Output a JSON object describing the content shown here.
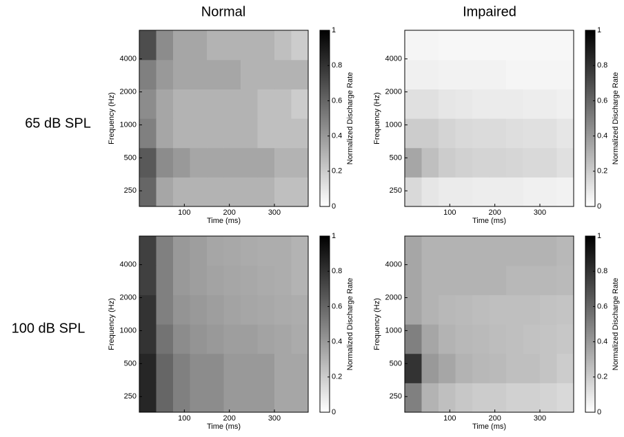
{
  "column_titles": [
    "Normal",
    "Impaired"
  ],
  "row_labels": [
    "65 dB SPL",
    "100 dB SPL"
  ],
  "chart_data": [
    {
      "type": "heatmap",
      "xlabel": "Time (ms)",
      "ylabel": "Frequency (Hz)",
      "colorbar_label": "Normalized Discharge Rate",
      "x": [
        18.75,
        56.25,
        93.75,
        131.25,
        168.75,
        206.25,
        243.75,
        281.25,
        318.75,
        356.25
      ],
      "y": [
        245,
        454,
        841,
        1558,
        2888,
        5351
      ],
      "values": [
        [
          0.6,
          0.35,
          0.3,
          0.3,
          0.3,
          0.3,
          0.3,
          0.3,
          0.25,
          0.25
        ],
        [
          0.65,
          0.45,
          0.4,
          0.35,
          0.35,
          0.35,
          0.35,
          0.35,
          0.3,
          0.3
        ],
        [
          0.5,
          0.35,
          0.3,
          0.3,
          0.3,
          0.3,
          0.3,
          0.25,
          0.25,
          0.25
        ],
        [
          0.45,
          0.35,
          0.3,
          0.3,
          0.3,
          0.3,
          0.3,
          0.25,
          0.25,
          0.2
        ],
        [
          0.5,
          0.4,
          0.35,
          0.35,
          0.35,
          0.35,
          0.3,
          0.3,
          0.3,
          0.3
        ],
        [
          0.7,
          0.45,
          0.35,
          0.35,
          0.3,
          0.3,
          0.3,
          0.3,
          0.25,
          0.2
        ]
      ],
      "xlim": [
        0,
        375
      ],
      "xticks": [
        100,
        200,
        300
      ],
      "ylim": [
        180,
        7300
      ],
      "yticks": [
        250,
        500,
        1000,
        2000,
        4000
      ],
      "log_y": true,
      "clim": [
        0,
        1
      ],
      "cticks": [
        0,
        0.2,
        0.4,
        0.6,
        0.8,
        1
      ],
      "colormap": [
        "#ffffff",
        "#000000"
      ]
    },
    {
      "type": "heatmap",
      "xlabel": "Time (ms)",
      "ylabel": "Frequency (Hz)",
      "colorbar_label": "Normalized Discharge Rate",
      "x": [
        18.75,
        56.25,
        93.75,
        131.25,
        168.75,
        206.25,
        243.75,
        281.25,
        318.75,
        356.25
      ],
      "y": [
        245,
        454,
        841,
        1558,
        2888,
        5351
      ],
      "values": [
        [
          0.15,
          0.1,
          0.08,
          0.08,
          0.07,
          0.07,
          0.07,
          0.06,
          0.06,
          0.05
        ],
        [
          0.35,
          0.25,
          0.2,
          0.18,
          0.17,
          0.17,
          0.16,
          0.15,
          0.15,
          0.12
        ],
        [
          0.2,
          0.2,
          0.17,
          0.15,
          0.14,
          0.14,
          0.13,
          0.12,
          0.12,
          0.1
        ],
        [
          0.12,
          0.12,
          0.1,
          0.09,
          0.08,
          0.08,
          0.08,
          0.07,
          0.07,
          0.06
        ],
        [
          0.06,
          0.06,
          0.05,
          0.05,
          0.05,
          0.05,
          0.04,
          0.04,
          0.04,
          0.04
        ],
        [
          0.04,
          0.04,
          0.03,
          0.03,
          0.03,
          0.03,
          0.03,
          0.03,
          0.03,
          0.03
        ]
      ],
      "xlim": [
        0,
        375
      ],
      "xticks": [
        100,
        200,
        300
      ],
      "ylim": [
        180,
        7300
      ],
      "yticks": [
        250,
        500,
        1000,
        2000,
        4000
      ],
      "log_y": true,
      "clim": [
        0,
        1
      ],
      "cticks": [
        0,
        0.2,
        0.4,
        0.6,
        0.8,
        1
      ],
      "colormap": [
        "#ffffff",
        "#000000"
      ]
    },
    {
      "type": "heatmap",
      "xlabel": "Time (ms)",
      "ylabel": "Frequency (Hz)",
      "colorbar_label": "Normalized Discharge Rate",
      "x": [
        18.75,
        56.25,
        93.75,
        131.25,
        168.75,
        206.25,
        243.75,
        281.25,
        318.75,
        356.25
      ],
      "y": [
        245,
        454,
        841,
        1558,
        2888,
        5351
      ],
      "values": [
        [
          0.85,
          0.6,
          0.5,
          0.45,
          0.45,
          0.4,
          0.4,
          0.4,
          0.35,
          0.35
        ],
        [
          0.85,
          0.6,
          0.5,
          0.45,
          0.45,
          0.4,
          0.4,
          0.4,
          0.35,
          0.35
        ],
        [
          0.8,
          0.55,
          0.45,
          0.42,
          0.4,
          0.38,
          0.38,
          0.36,
          0.35,
          0.33
        ],
        [
          0.8,
          0.5,
          0.42,
          0.4,
          0.38,
          0.36,
          0.35,
          0.34,
          0.33,
          0.32
        ],
        [
          0.75,
          0.5,
          0.4,
          0.38,
          0.36,
          0.35,
          0.34,
          0.33,
          0.32,
          0.3
        ],
        [
          0.75,
          0.5,
          0.4,
          0.38,
          0.35,
          0.34,
          0.33,
          0.32,
          0.32,
          0.3
        ]
      ],
      "xlim": [
        0,
        375
      ],
      "xticks": [
        100,
        200,
        300
      ],
      "ylim": [
        180,
        7300
      ],
      "yticks": [
        250,
        500,
        1000,
        2000,
        4000
      ],
      "log_y": true,
      "clim": [
        0,
        1
      ],
      "cticks": [
        0,
        0.2,
        0.4,
        0.6,
        0.8,
        1
      ],
      "colormap": [
        "#ffffff",
        "#000000"
      ]
    },
    {
      "type": "heatmap",
      "xlabel": "Time (ms)",
      "ylabel": "Frequency (Hz)",
      "colorbar_label": "Normalized Discharge Rate",
      "x": [
        18.75,
        56.25,
        93.75,
        131.25,
        168.75,
        206.25,
        243.75,
        281.25,
        318.75,
        356.25
      ],
      "y": [
        245,
        454,
        841,
        1558,
        2888,
        5351
      ],
      "values": [
        [
          0.5,
          0.3,
          0.25,
          0.22,
          0.2,
          0.2,
          0.18,
          0.18,
          0.17,
          0.15
        ],
        [
          0.8,
          0.4,
          0.35,
          0.3,
          0.28,
          0.27,
          0.25,
          0.25,
          0.23,
          0.2
        ],
        [
          0.5,
          0.35,
          0.3,
          0.28,
          0.27,
          0.26,
          0.25,
          0.24,
          0.23,
          0.22
        ],
        [
          0.35,
          0.3,
          0.28,
          0.27,
          0.26,
          0.25,
          0.25,
          0.25,
          0.24,
          0.23
        ],
        [
          0.35,
          0.3,
          0.3,
          0.3,
          0.3,
          0.3,
          0.28,
          0.28,
          0.28,
          0.27
        ],
        [
          0.35,
          0.3,
          0.3,
          0.3,
          0.3,
          0.3,
          0.3,
          0.3,
          0.3,
          0.28
        ]
      ],
      "xlim": [
        0,
        375
      ],
      "xticks": [
        100,
        200,
        300
      ],
      "ylim": [
        180,
        7300
      ],
      "yticks": [
        250,
        500,
        1000,
        2000,
        4000
      ],
      "log_y": true,
      "clim": [
        0,
        1
      ],
      "cticks": [
        0,
        0.2,
        0.4,
        0.6,
        0.8,
        1
      ],
      "colormap": [
        "#ffffff",
        "#000000"
      ]
    }
  ]
}
